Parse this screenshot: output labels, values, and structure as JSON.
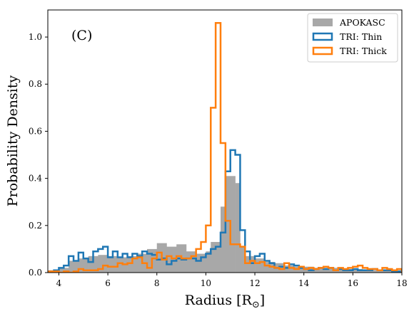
{
  "chart_data": {
    "type": "histogram",
    "panel_label": "(C)",
    "xlabel": "Radius [R",
    "xlabel_sub": "⊙",
    "xlabel_end": "]",
    "ylabel": "Probability Density",
    "xlim": [
      3.55,
      18.0
    ],
    "ylim": [
      0.0,
      1.115
    ],
    "xticks": [
      4,
      6,
      8,
      10,
      12,
      14,
      16,
      18
    ],
    "yticks": [
      0.0,
      0.2,
      0.4,
      0.6,
      0.8,
      1.0
    ],
    "xtick_labels": [
      "4",
      "6",
      "8",
      "10",
      "12",
      "14",
      "16",
      "18"
    ],
    "ytick_labels": [
      "0.0",
      "0.2",
      "0.4",
      "0.6",
      "0.8",
      "1.0"
    ],
    "legend_position": "upper right",
    "series": [
      {
        "name": "APOKASC",
        "style": "filled",
        "color": "#a8a8a8",
        "edges": [
          3.6,
          4.0,
          4.4,
          4.8,
          5.2,
          5.6,
          6.0,
          6.4,
          6.8,
          7.2,
          7.6,
          8.0,
          8.4,
          8.8,
          9.2,
          9.6,
          10.0,
          10.2,
          10.6,
          10.8,
          11.2,
          11.4,
          11.6,
          12.0,
          12.4,
          12.8,
          13.2,
          13.6,
          14.0,
          14.4,
          14.8,
          15.2,
          15.6,
          16.0,
          16.4,
          16.8,
          17.2,
          17.6,
          18.0
        ],
        "values": [
          0.01,
          0.02,
          0.05,
          0.06,
          0.07,
          0.075,
          0.07,
          0.065,
          0.07,
          0.08,
          0.1,
          0.125,
          0.11,
          0.12,
          0.09,
          0.08,
          0.09,
          0.13,
          0.28,
          0.41,
          0.38,
          0.11,
          0.07,
          0.06,
          0.045,
          0.04,
          0.03,
          0.025,
          0.025,
          0.02,
          0.02,
          0.02,
          0.015,
          0.015,
          0.01,
          0.01,
          0.01,
          0.01
        ]
      },
      {
        "name": "TRI: Thin",
        "style": "step",
        "color": "#1f77b4",
        "edges": [
          3.6,
          3.8,
          4.0,
          4.2,
          4.4,
          4.6,
          4.8,
          5.0,
          5.2,
          5.4,
          5.6,
          5.8,
          6.0,
          6.2,
          6.4,
          6.6,
          6.8,
          7.0,
          7.2,
          7.4,
          7.6,
          7.8,
          8.0,
          8.2,
          8.4,
          8.6,
          8.8,
          9.0,
          9.2,
          9.4,
          9.6,
          9.8,
          10.0,
          10.2,
          10.4,
          10.6,
          10.8,
          11.0,
          11.2,
          11.4,
          11.6,
          11.8,
          12.0,
          12.2,
          12.4,
          12.6,
          12.8,
          13.0,
          13.2,
          13.4,
          13.6,
          13.8,
          14.0,
          14.2,
          14.4,
          14.6,
          14.8,
          15.0,
          15.2,
          15.4,
          15.6,
          15.8,
          16.0,
          16.2,
          16.4,
          16.6,
          16.8,
          17.0,
          17.2,
          17.4,
          17.6,
          17.8,
          18.0
        ],
        "values": [
          0.005,
          0.01,
          0.02,
          0.03,
          0.07,
          0.05,
          0.085,
          0.06,
          0.045,
          0.09,
          0.1,
          0.11,
          0.065,
          0.09,
          0.065,
          0.08,
          0.065,
          0.08,
          0.07,
          0.09,
          0.08,
          0.075,
          0.055,
          0.06,
          0.035,
          0.05,
          0.06,
          0.055,
          0.06,
          0.06,
          0.05,
          0.065,
          0.08,
          0.1,
          0.11,
          0.17,
          0.43,
          0.52,
          0.5,
          0.18,
          0.09,
          0.04,
          0.07,
          0.08,
          0.05,
          0.04,
          0.02,
          0.025,
          0.02,
          0.035,
          0.03,
          0.02,
          0.015,
          0.01,
          0.015,
          0.02,
          0.015,
          0.02,
          0.01,
          0.015,
          0.01,
          0.01,
          0.015,
          0.01,
          0.01,
          0.01,
          0.015,
          0.01,
          0.01,
          0.01,
          0.005,
          0.005
        ]
      },
      {
        "name": "TRI: Thick",
        "style": "step",
        "color": "#ff7f0e",
        "edges": [
          3.6,
          3.8,
          4.0,
          4.2,
          4.4,
          4.6,
          4.8,
          5.0,
          5.2,
          5.4,
          5.6,
          5.8,
          6.0,
          6.2,
          6.4,
          6.6,
          6.8,
          7.0,
          7.2,
          7.4,
          7.6,
          7.8,
          8.0,
          8.2,
          8.4,
          8.6,
          8.8,
          9.0,
          9.2,
          9.4,
          9.6,
          9.8,
          10.0,
          10.2,
          10.4,
          10.6,
          10.8,
          11.0,
          11.2,
          11.4,
          11.6,
          11.8,
          12.0,
          12.2,
          12.4,
          12.6,
          12.8,
          13.0,
          13.2,
          13.4,
          13.6,
          13.8,
          14.0,
          14.2,
          14.4,
          14.6,
          14.8,
          15.0,
          15.2,
          15.4,
          15.6,
          15.8,
          16.0,
          16.2,
          16.4,
          16.6,
          16.8,
          17.0,
          17.2,
          17.4,
          17.6,
          17.8,
          18.0
        ],
        "values": [
          0.005,
          0.005,
          0.0,
          0.005,
          0.0,
          0.005,
          0.015,
          0.01,
          0.01,
          0.01,
          0.015,
          0.03,
          0.025,
          0.025,
          0.04,
          0.035,
          0.04,
          0.06,
          0.065,
          0.04,
          0.02,
          0.06,
          0.085,
          0.055,
          0.07,
          0.06,
          0.07,
          0.06,
          0.06,
          0.07,
          0.1,
          0.13,
          0.2,
          0.7,
          1.06,
          0.55,
          0.22,
          0.12,
          0.12,
          0.11,
          0.04,
          0.05,
          0.04,
          0.045,
          0.03,
          0.025,
          0.02,
          0.015,
          0.04,
          0.02,
          0.015,
          0.025,
          0.015,
          0.02,
          0.015,
          0.02,
          0.025,
          0.02,
          0.01,
          0.02,
          0.015,
          0.02,
          0.025,
          0.03,
          0.02,
          0.015,
          0.015,
          0.01,
          0.02,
          0.015,
          0.01,
          0.015
        ]
      }
    ]
  }
}
